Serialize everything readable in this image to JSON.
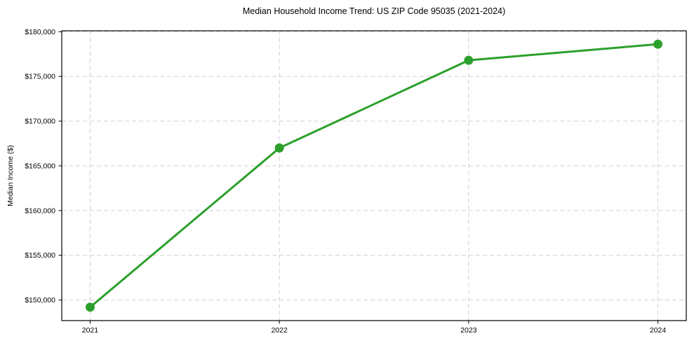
{
  "chart_data": {
    "type": "line",
    "title": "Median Household Income Trend: US ZIP Code 95035 (2021-2024)",
    "xlabel": "",
    "ylabel": "Median Income ($)",
    "x": [
      2021,
      2022,
      2023,
      2024
    ],
    "x_tick_labels": [
      "2021",
      "2022",
      "2023",
      "2024"
    ],
    "values": [
      149200,
      167000,
      176800,
      178600
    ],
    "series_name": "Median Household Income",
    "y_ticks": [
      150000,
      155000,
      160000,
      165000,
      170000,
      175000,
      180000
    ],
    "y_tick_labels": [
      "$150,000",
      "$155,000",
      "$160,000",
      "$165,000",
      "$170,000",
      "$175,000",
      "$180,000"
    ],
    "xlim": [
      2020.85,
      2024.15
    ],
    "ylim": [
      147700,
      180100
    ],
    "grid": true,
    "grid_style": "dashed",
    "legend_position": "none",
    "colors": {
      "line": "#2ca02c",
      "marker": "#2ca02c",
      "grid": "#d0d0d0",
      "spine": "#000000",
      "text": "#000000",
      "background": "#ffffff"
    }
  }
}
